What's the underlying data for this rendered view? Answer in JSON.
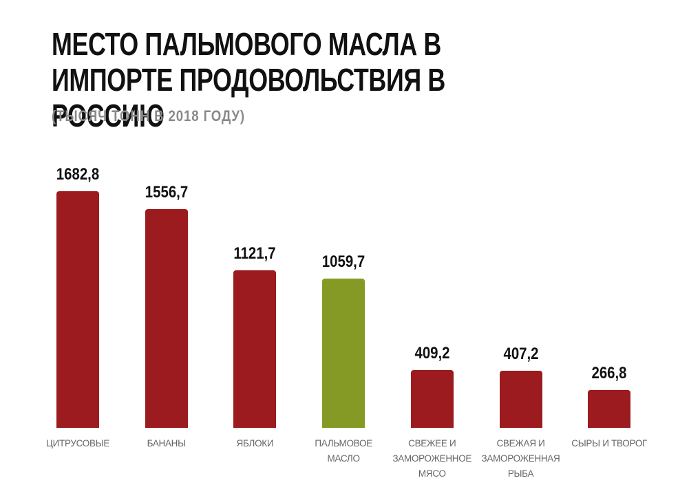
{
  "chart_data": {
    "type": "bar",
    "title": "МЕСТО ПАЛЬМОВОГО МАСЛА В ИМПОРТЕ ПРОДОВОЛЬСТВИЯ В РОССИЮ",
    "subtitle": "(ТЫСЯЧ ТОНН В 2018 ГОДУ)",
    "categories": [
      "ЦИТРУСОВЫЕ",
      "БАНАНЫ",
      "ЯБЛОКИ",
      "ПАЛЬМОВОЕ МАСЛО",
      "СВЕЖЕЕ И ЗАМОРОЖЕННОЕ МЯСО",
      "СВЕЖАЯ И ЗАМОРОЖЕННАЯ РЫБА",
      "СЫРЫ И ТВОРОГ"
    ],
    "values": [
      1682.8,
      1556.7,
      1121.7,
      1059.7,
      409.2,
      407.2,
      266.8
    ],
    "value_labels": [
      "1682,8",
      "1556,7",
      "1121,7",
      "1059,7",
      "409,2",
      "407,2",
      "266,8"
    ],
    "colors": [
      "#9b1b1e",
      "#9b1b1e",
      "#9b1b1e",
      "#859a24",
      "#9b1b1e",
      "#9b1b1e",
      "#9b1b1e"
    ]
  }
}
